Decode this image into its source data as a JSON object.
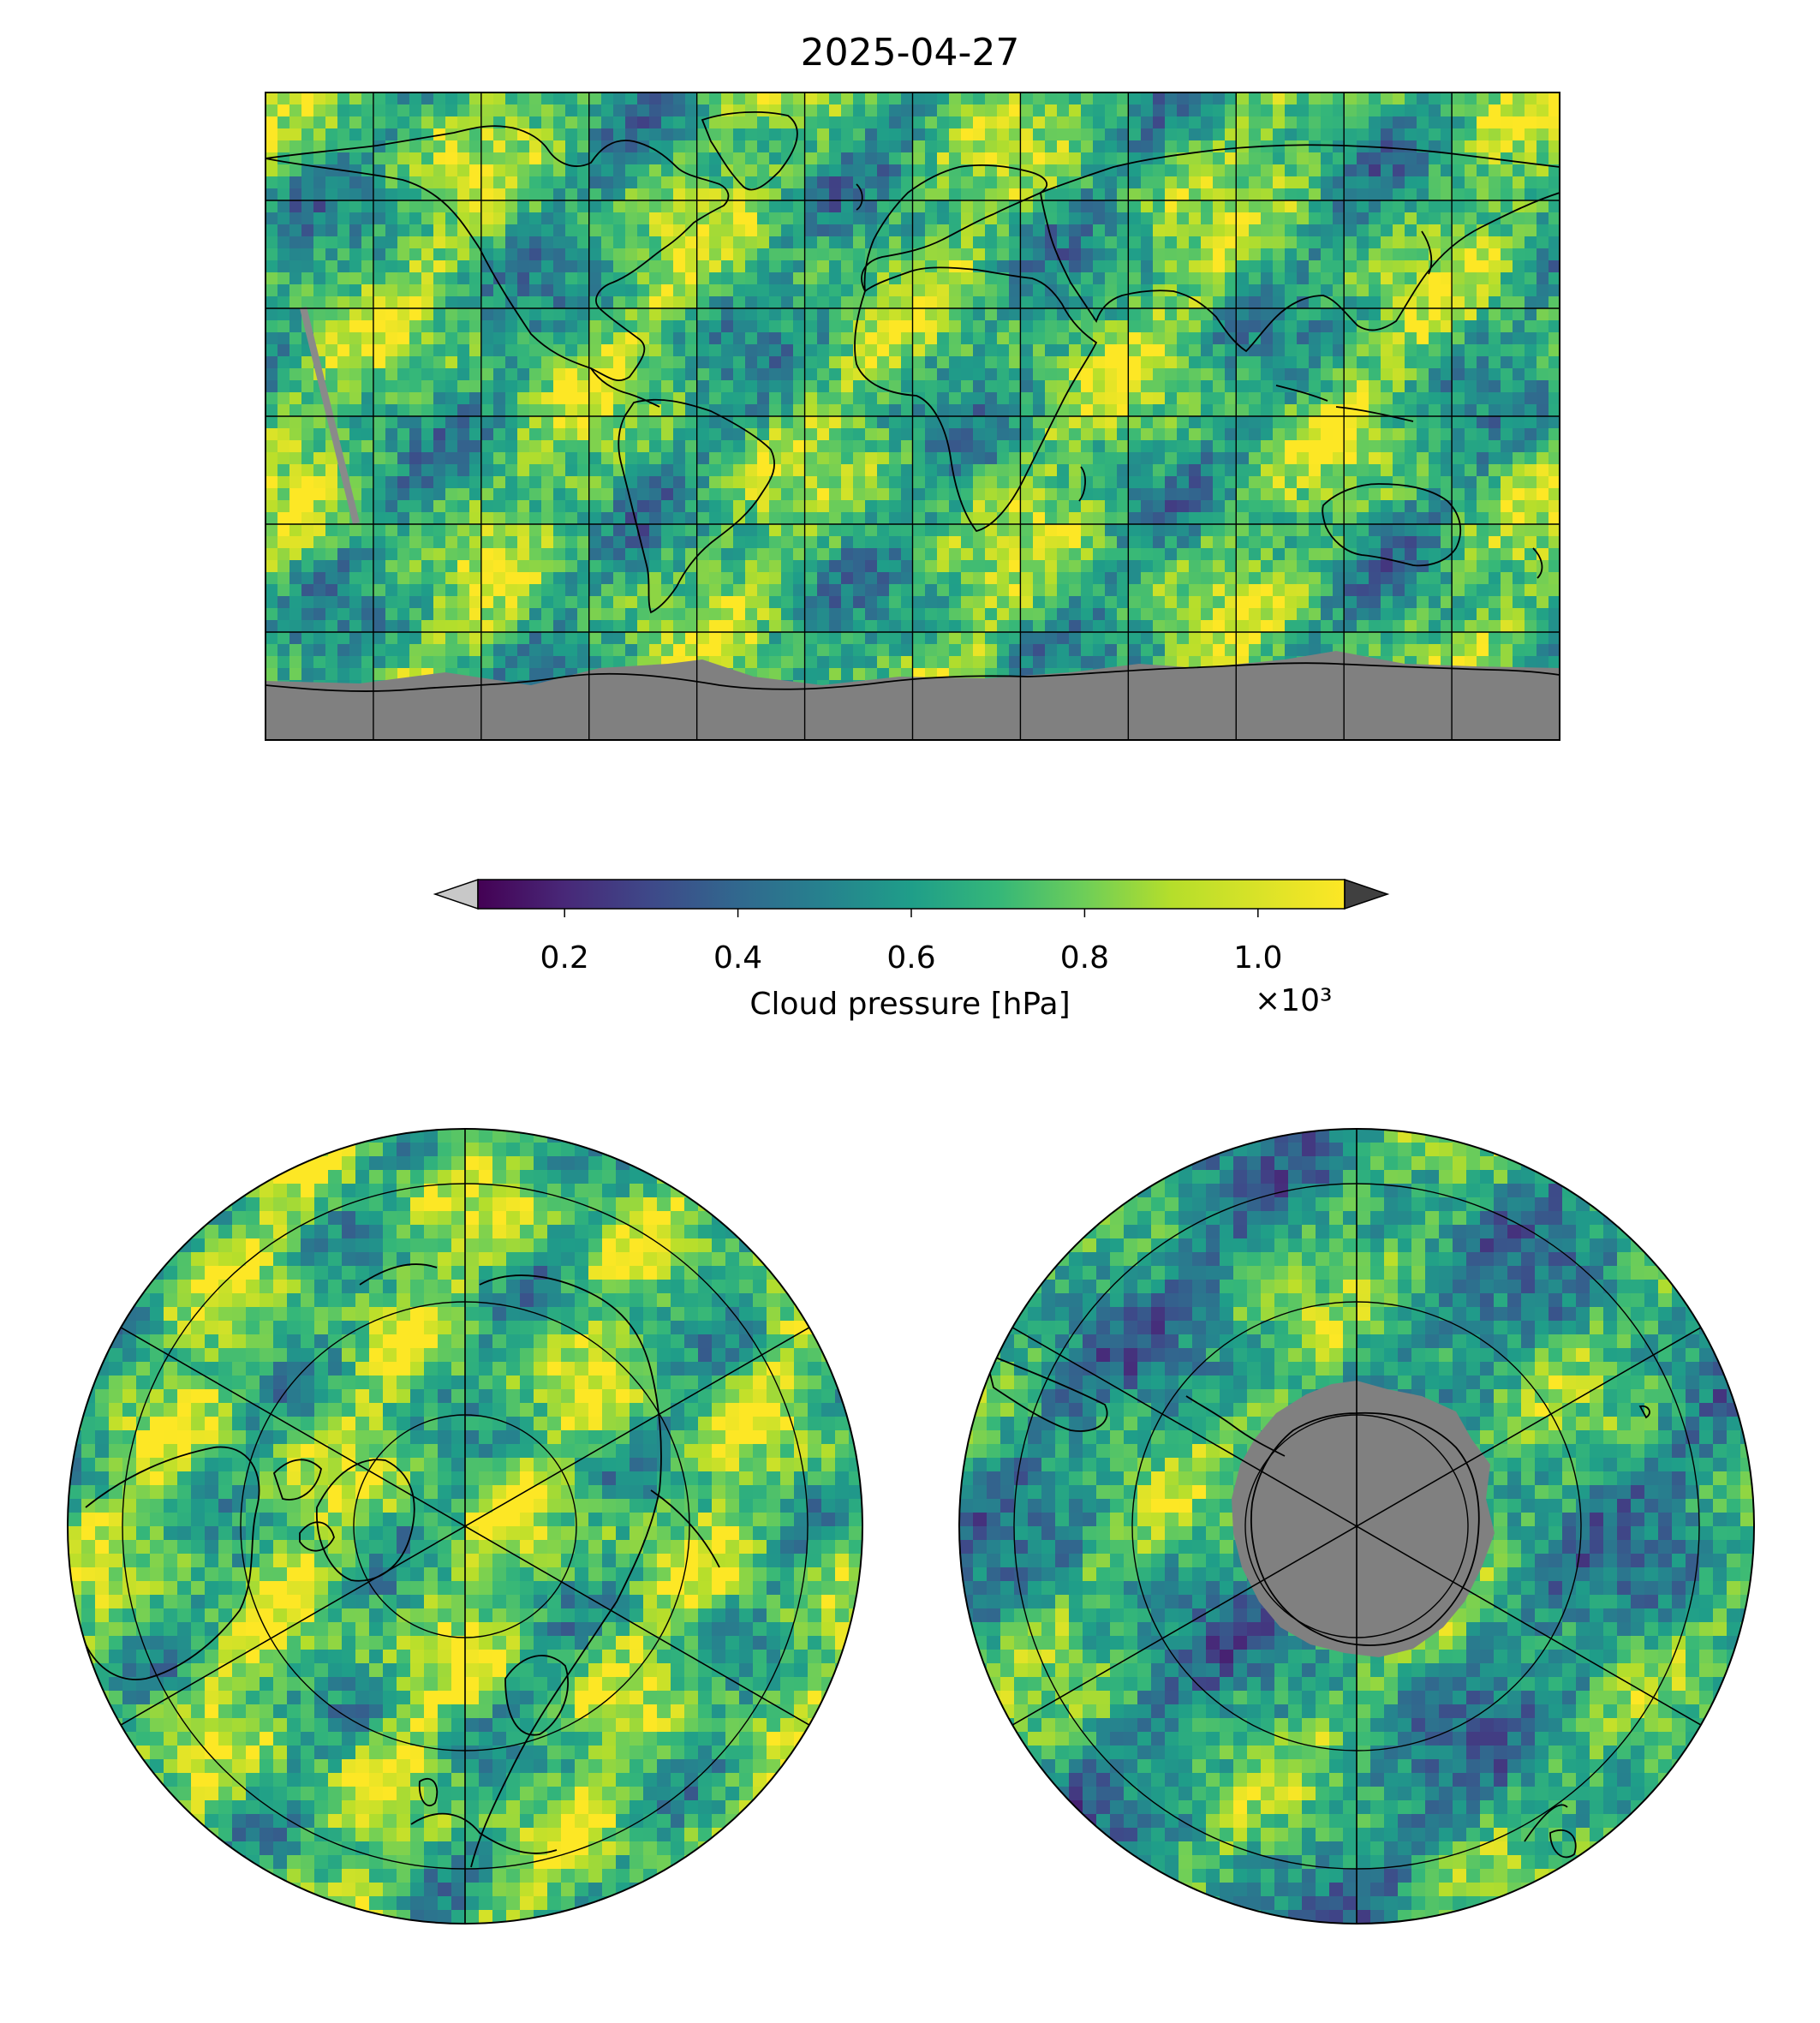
{
  "figure": {
    "title": "2025-04-27"
  },
  "colorbar": {
    "label": "Cloud pressure [hPa]",
    "multiplier": "×10³",
    "ticks": [
      {
        "value": 0.2,
        "label": "0.2"
      },
      {
        "value": 0.4,
        "label": "0.4"
      },
      {
        "value": 0.6,
        "label": "0.6"
      },
      {
        "value": 0.8,
        "label": "0.8"
      },
      {
        "value": 1.0,
        "label": "1.0"
      }
    ],
    "range": [
      0.1,
      1.1
    ],
    "colormap": "viridis",
    "under_color": "#c8c8c8",
    "over_color": "#404040",
    "extend": "both"
  },
  "colors": {
    "missing_data": "#808080",
    "coastline": "#000000",
    "gridline": "#000000"
  },
  "maps": [
    {
      "projection": "PlateCarree",
      "graticule_lon_step": 30,
      "graticule_lat_step": 30
    },
    {
      "projection": "NorthPolarStereo",
      "meridians": 6,
      "parallels": [
        30,
        50,
        70,
        80
      ]
    },
    {
      "projection": "SouthPolarStereo",
      "meridians": 6,
      "parallels": [
        -30,
        -50,
        -70
      ]
    }
  ]
}
